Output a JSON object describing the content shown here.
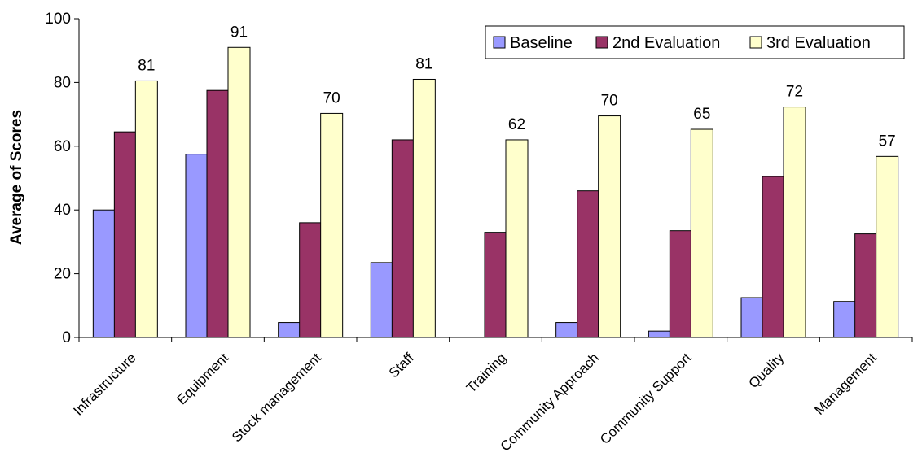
{
  "chart_data": {
    "type": "bar",
    "title": "",
    "xlabel": "",
    "ylabel": "Average of Scores",
    "ylim": [
      0,
      100
    ],
    "yticks": [
      0,
      20,
      40,
      60,
      80,
      100
    ],
    "grid": false,
    "legend_position": "top-right",
    "categories": [
      "Infrastructure",
      "Equipment",
      "Stock management",
      "Staff",
      "Training",
      "Community Approach",
      "Community Support",
      "Quality",
      "Management"
    ],
    "series": [
      {
        "name": "Baseline",
        "color": "#9999ff",
        "values": [
          40,
          57.5,
          4.7,
          23.5,
          0,
          4.7,
          2,
          12.5,
          11.3
        ]
      },
      {
        "name": "2nd Evaluation",
        "color": "#993366",
        "values": [
          64.5,
          77.5,
          36,
          62,
          33,
          46,
          33.5,
          50.5,
          32.5
        ]
      },
      {
        "name": "3rd Evaluation",
        "color": "#ffffcc",
        "values": [
          80.5,
          91,
          70.3,
          81,
          62,
          69.5,
          65.3,
          72.3,
          56.8
        ]
      }
    ],
    "data_labels": [
      "81",
      "91",
      "70",
      "81",
      "62",
      "70",
      "65",
      "72",
      "57"
    ]
  }
}
